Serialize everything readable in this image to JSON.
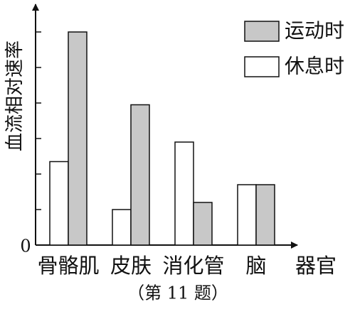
{
  "chart_data": {
    "type": "bar",
    "y_label": "血流相对速率",
    "x_label": "器官",
    "caption": "（第 11 题）",
    "categories": [
      "骨骼肌",
      "皮肤",
      "消化管",
      "脑"
    ],
    "series": [
      {
        "name": "休息时",
        "color": "#ffffff",
        "values": [
          2.35,
          1.0,
          2.9,
          1.7
        ]
      },
      {
        "name": "运动时",
        "color": "#c8c8c8",
        "values": [
          6.0,
          3.95,
          1.2,
          1.7
        ]
      }
    ],
    "ylim": [
      0,
      6.8
    ],
    "yticks": [
      0
    ],
    "ytick_marks": [
      1,
      2,
      3,
      4,
      5,
      6
    ]
  }
}
